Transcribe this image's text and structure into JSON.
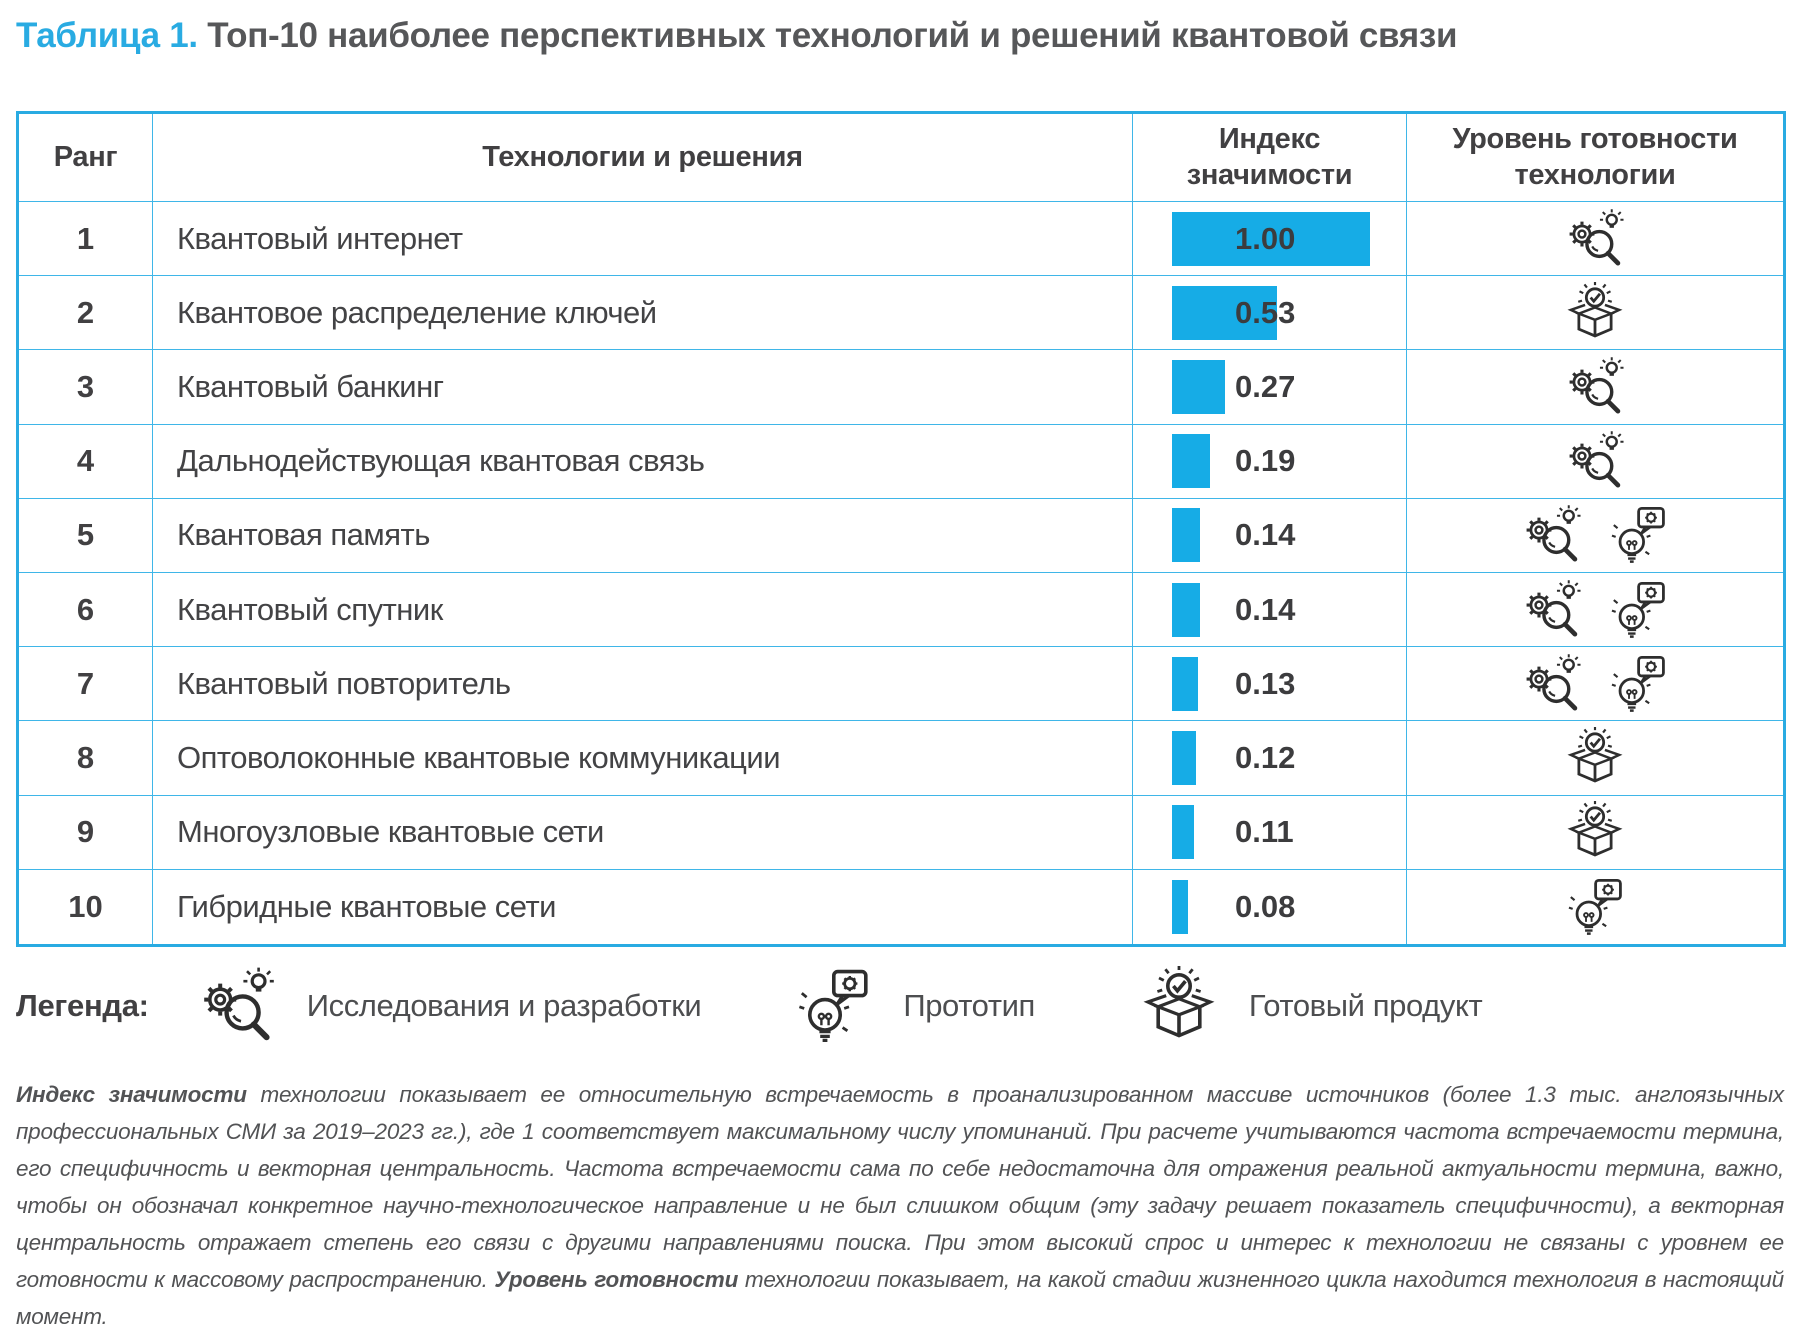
{
  "title": {
    "prefix": "Таблица 1.",
    "text": "Топ-10 наиболее перспективных технологий и решений квантовой связи"
  },
  "colors": {
    "accent_blue": "#29ABE2",
    "bar_blue": "#16ACE6",
    "grid_blue": "#3FB6E8",
    "text_dark": "#414042"
  },
  "table": {
    "headers": [
      "Ранг",
      "Технологии и решения",
      "Индекс значимости",
      "Уровень готовности технологии"
    ],
    "rows": [
      {
        "rank": "1",
        "name": "Квантовый интернет",
        "value": 1.0,
        "value_label": "1.00",
        "readiness": [
          "rnd"
        ]
      },
      {
        "rank": "2",
        "name": "Квантовое распределение ключей",
        "value": 0.53,
        "value_label": "0.53",
        "readiness": [
          "product"
        ]
      },
      {
        "rank": "3",
        "name": "Квантовый банкинг",
        "value": 0.27,
        "value_label": "0.27",
        "readiness": [
          "rnd"
        ]
      },
      {
        "rank": "4",
        "name": "Дальнодействующая квантовая связь",
        "value": 0.19,
        "value_label": "0.19",
        "readiness": [
          "rnd"
        ]
      },
      {
        "rank": "5",
        "name": "Квантовая память",
        "value": 0.14,
        "value_label": "0.14",
        "readiness": [
          "rnd",
          "prototype"
        ]
      },
      {
        "rank": "6",
        "name": "Квантовый спутник",
        "value": 0.14,
        "value_label": "0.14",
        "readiness": [
          "rnd",
          "prototype"
        ]
      },
      {
        "rank": "7",
        "name": "Квантовый повторитель",
        "value": 0.13,
        "value_label": "0.13",
        "readiness": [
          "rnd",
          "prototype"
        ]
      },
      {
        "rank": "8",
        "name": "Оптоволоконные квантовые коммуникации",
        "value": 0.12,
        "value_label": "0.12",
        "readiness": [
          "product"
        ]
      },
      {
        "rank": "9",
        "name": "Многоузловые квантовые сети",
        "value": 0.11,
        "value_label": "0.11",
        "readiness": [
          "product"
        ]
      },
      {
        "rank": "10",
        "name": "Гибридные квантовые сети",
        "value": 0.08,
        "value_label": "0.08",
        "readiness": [
          "prototype"
        ]
      }
    ]
  },
  "icons": {
    "rnd": {
      "ref": "#icon-rnd",
      "name": "research-and-development-icon"
    },
    "prototype": {
      "ref": "#icon-prototype",
      "name": "prototype-lightbulb-icon"
    },
    "product": {
      "ref": "#icon-product",
      "name": "ready-product-box-icon"
    }
  },
  "legend": {
    "label": "Легенда:",
    "items": [
      {
        "icon": "rnd",
        "icon_ref": "#icon-rnd",
        "label": "Исследования и разработки"
      },
      {
        "icon": "prototype",
        "icon_ref": "#icon-prototype",
        "label": "Прототип"
      },
      {
        "icon": "product",
        "icon_ref": "#icon-product",
        "label": "Готовый продукт"
      }
    ]
  },
  "footnote": {
    "segments": [
      {
        "text": "Индекс значимости",
        "bold": true
      },
      {
        "text": " технологии показывает ее относительную встречаемость в проанализированном массиве источников (более 1.3 тыс. англоязычных профессиональных СМИ за 2019–2023 гг.), где 1 соответствует максимальному числу упоминаний. При расчете учитываются частота встречаемости термина, его специфичность и векторная центральность. Частота встречаемости сама по себе недостаточна для отражения реальной актуальности термина, важно, чтобы он обозначал конкретное научно-технологическое направление и не был слишком общим (эту задачу решает показатель специфичности), а векторная центральность отражает степень его связи с другими направлениями поиска. При этом высокий спрос и интерес к технологии не связаны с уровнем ее готовности к массовому распространению. ",
        "bold": false
      },
      {
        "text": "Уровень готовности",
        "bold": true
      },
      {
        "text": " технологии показывает, на какой стадии жизненного цикла находится технология в настоящий момент.",
        "bold": false
      }
    ]
  },
  "chart_data": {
    "type": "table",
    "title": "Таблица 1. Топ-10 наиболее перспективных технологий и решений квантовой связи",
    "columns": [
      "Ранг",
      "Технологии и решения",
      "Индекс значимости",
      "Уровень готовности технологии"
    ],
    "categories": [
      "Квантовый интернет",
      "Квантовое распределение ключей",
      "Квантовый банкинг",
      "Дальнодействующая квантовая связь",
      "Квантовая память",
      "Квантовый спутник",
      "Квантовый повторитель",
      "Оптоволоконные квантовые коммуникации",
      "Многоузловые квантовые сети",
      "Гибридные квантовые сети"
    ],
    "values": [
      1.0,
      0.53,
      0.27,
      0.19,
      0.14,
      0.14,
      0.13,
      0.12,
      0.11,
      0.08
    ],
    "readiness": [
      [
        "Исследования и разработки"
      ],
      [
        "Готовый продукт"
      ],
      [
        "Исследования и разработки"
      ],
      [
        "Исследования и разработки"
      ],
      [
        "Исследования и разработки",
        "Прототип"
      ],
      [
        "Исследования и разработки",
        "Прототип"
      ],
      [
        "Исследования и разработки",
        "Прототип"
      ],
      [
        "Готовый продукт"
      ],
      [
        "Готовый продукт"
      ],
      [
        "Прототип"
      ]
    ],
    "value_range": [
      0,
      1
    ],
    "bar_color": "#16ACE6",
    "legend_entries": [
      "Исследования и разработки",
      "Прототип",
      "Готовый продукт"
    ],
    "legend_position": "bottom"
  }
}
